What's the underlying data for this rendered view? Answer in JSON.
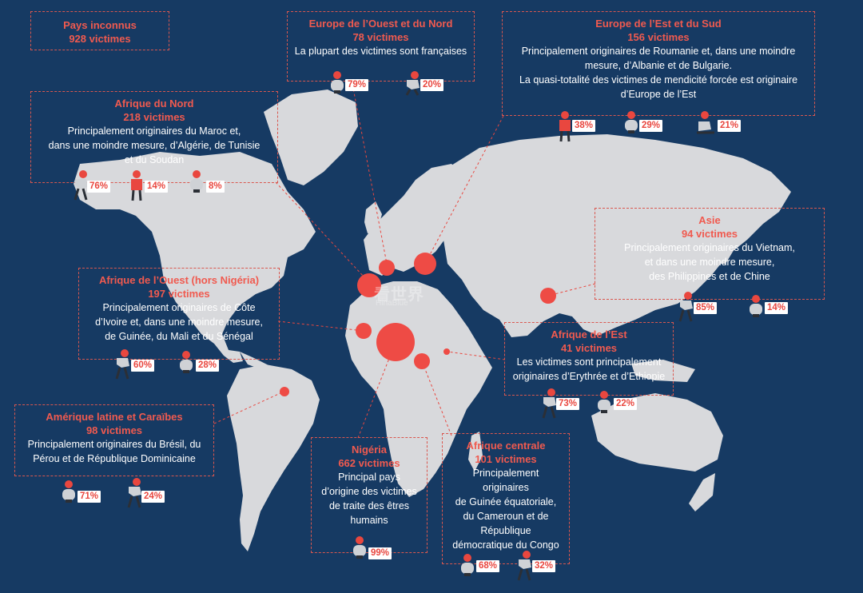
{
  "colors": {
    "ocean": "#163a63",
    "land": "#d8d9dc",
    "accent": "#f05a4f",
    "dot": "#ee4b45"
  },
  "regions": {
    "unknown": {
      "title": "Pays inconnus",
      "count": "928 victimes"
    },
    "west_north_europe": {
      "title": "Europe de l’Ouest et du Nord",
      "count": "78 victimes",
      "desc": [
        "La plupart des victimes sont françaises"
      ],
      "pcts": [
        "79%",
        "20%"
      ]
    },
    "east_south_europe": {
      "title": "Europe de l’Est et du Sud",
      "count": "156 victimes",
      "desc": [
        "Principalement originaires de Roumanie et, dans une moindre",
        "mesure, d’Albanie et de Bulgarie.",
        "La quasi-totalité des victimes de mendicité forcée est originaire",
        "d’Europe de l’Est"
      ],
      "pcts": [
        "38%",
        "29%",
        "21%"
      ]
    },
    "north_africa": {
      "title": "Afrique du Nord",
      "count": "218 victimes",
      "desc": [
        "Principalement originaires du Maroc et,",
        "dans une moindre mesure, d’Algérie, de Tunisie",
        "et du Soudan"
      ],
      "pcts": [
        "76%",
        "14%",
        "8%"
      ]
    },
    "asia": {
      "title": "Asie",
      "count": "94 victimes",
      "desc": [
        "Principalement originaires du Vietnam,",
        "et dans une moindre mesure,",
        "des Philippines et de Chine"
      ],
      "pcts": [
        "85%",
        "14%"
      ]
    },
    "west_africa": {
      "title": "Afrique de l’Ouest (hors Nigéria)",
      "count": "197 victimes",
      "desc": [
        "Principalement originaires de Côte",
        "d’Ivoire et, dans une moindre mesure,",
        "de Guinée, du Mali et du Sénégal"
      ],
      "pcts": [
        "60%",
        "28%"
      ]
    },
    "east_africa": {
      "title": "Afrique de l’Est",
      "count": "41 victimes",
      "desc": [
        "Les victimes sont principalement",
        "originaires d’Erythrée et d’Ethiopie"
      ],
      "pcts": [
        "73%",
        "22%"
      ]
    },
    "latin_america": {
      "title": "Amérique latine et Caraïbes",
      "count": "98 victimes",
      "desc": [
        "Principalement originaires du Brésil, du",
        "Pérou et de République Dominicaine"
      ],
      "pcts": [
        "71%",
        "24%"
      ]
    },
    "nigeria": {
      "title": "Nigéria",
      "count": "662 victimes",
      "desc": [
        "Principal pays",
        "d’origine des victimes",
        "de traite des êtres",
        "humains"
      ],
      "pcts": [
        "99%"
      ]
    },
    "central_africa": {
      "title": "Afrique centrale",
      "count": "101 victimes",
      "desc": [
        "Principalement originaires",
        "de Guinée équatoriale,",
        "du Cameroun et de",
        "République",
        "démocratique du Congo"
      ],
      "pcts": [
        "68%",
        "32%"
      ]
    }
  },
  "watermark": {
    "main": "看世界",
    "sub": "HinaBlue"
  }
}
